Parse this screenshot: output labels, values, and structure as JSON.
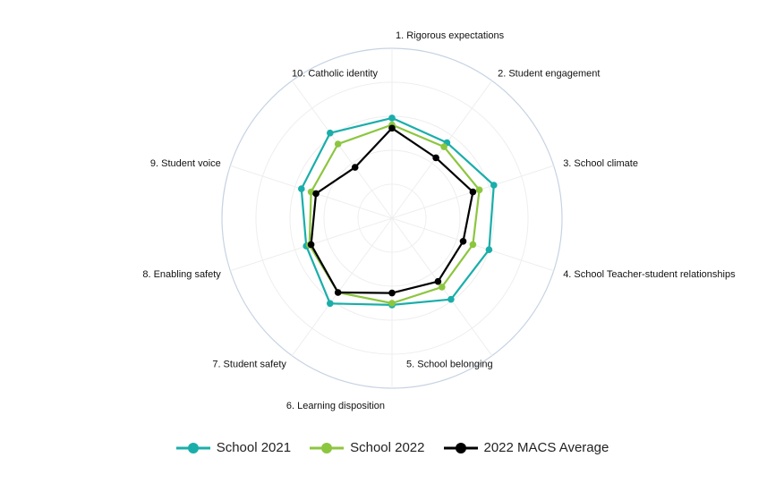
{
  "chart_data": {
    "type": "radar",
    "categories": [
      "1. Rigorous expectations",
      "2. Student engagement",
      "3. School climate",
      "4. School Teacher-student relationships",
      "5. School belonging",
      "6. Learning disposition",
      "7. Student safety",
      "8. Enabling safety",
      "9. Student voice",
      "10. Catholic identity"
    ],
    "series": [
      {
        "name": "School 2021",
        "color": "#1aaeaa",
        "values": [
          0.59,
          0.55,
          0.63,
          0.6,
          0.59,
          0.51,
          0.62,
          0.53,
          0.56,
          0.62
        ]
      },
      {
        "name": "School 2022",
        "color": "#8cc63f",
        "values": [
          0.55,
          0.52,
          0.54,
          0.5,
          0.5,
          0.5,
          0.54,
          0.51,
          0.5,
          0.54
        ]
      },
      {
        "name": "2022 MACS Average",
        "color": "#000000",
        "values": [
          0.53,
          0.44,
          0.5,
          0.44,
          0.46,
          0.44,
          0.54,
          0.5,
          0.47,
          0.37
        ]
      }
    ],
    "rlim": [
      0,
      1
    ],
    "grid": true,
    "legend_position": "bottom"
  }
}
